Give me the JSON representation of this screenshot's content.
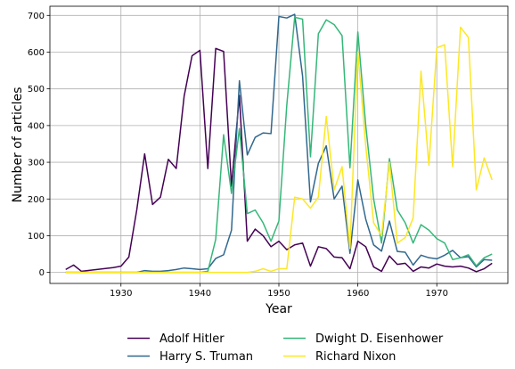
{
  "chart_data": {
    "type": "line",
    "title": "",
    "xlabel": "Year",
    "ylabel": "Number of articles",
    "xlim": [
      1921,
      1979
    ],
    "ylim": [
      -30,
      725
    ],
    "xticks": [
      1930,
      1940,
      1950,
      1960,
      1970
    ],
    "yticks": [
      0,
      100,
      200,
      300,
      400,
      500,
      600,
      700
    ],
    "grid": true,
    "legend_position": "bottom",
    "series": [
      {
        "name": "Adolf Hitler",
        "color": "#440154",
        "x": [
          1923,
          1924,
          1925,
          1929,
          1930,
          1931,
          1932,
          1933,
          1934,
          1935,
          1936,
          1937,
          1938,
          1939,
          1940,
          1941,
          1942,
          1943,
          1944,
          1945,
          1946,
          1947,
          1948,
          1949,
          1950,
          1951,
          1952,
          1953,
          1954,
          1955,
          1956,
          1957,
          1958,
          1959,
          1960,
          1961,
          1962,
          1963,
          1964,
          1965,
          1966,
          1967,
          1968,
          1969,
          1970,
          1971,
          1972,
          1973,
          1974,
          1975,
          1976,
          1977
        ],
        "y": [
          8,
          20,
          3,
          13,
          17,
          42,
          170,
          323,
          185,
          205,
          308,
          283,
          480,
          590,
          605,
          283,
          610,
          602,
          235,
          482,
          85,
          118,
          100,
          70,
          85,
          62,
          75,
          80,
          17,
          70,
          65,
          42,
          40,
          10,
          85,
          70,
          15,
          3,
          45,
          22,
          25,
          3,
          15,
          12,
          23,
          17,
          15,
          17,
          12,
          2,
          10,
          25
        ]
      },
      {
        "name": "Harry S. Truman",
        "color": "#31688e",
        "x": [
          1923,
          1932,
          1933,
          1934,
          1935,
          1936,
          1937,
          1938,
          1939,
          1940,
          1941,
          1942,
          1943,
          1944,
          1945,
          1946,
          1947,
          1948,
          1949,
          1950,
          1951,
          1952,
          1953,
          1954,
          1955,
          1956,
          1957,
          1958,
          1959,
          1960,
          1961,
          1962,
          1963,
          1964,
          1965,
          1966,
          1967,
          1968,
          1969,
          1970,
          1971,
          1972,
          1973,
          1974,
          1975,
          1976,
          1977
        ],
        "y": [
          0,
          0,
          5,
          3,
          3,
          5,
          8,
          12,
          10,
          8,
          10,
          38,
          48,
          115,
          522,
          320,
          368,
          380,
          378,
          697,
          693,
          703,
          535,
          192,
          297,
          345,
          200,
          235,
          52,
          252,
          145,
          75,
          58,
          140,
          57,
          55,
          20,
          47,
          40,
          37,
          47,
          60,
          40,
          43,
          15,
          35,
          33
        ]
      },
      {
        "name": "Dwight D. Eisenhower",
        "color": "#35b779",
        "x": [
          1923,
          1939,
          1940,
          1941,
          1942,
          1943,
          1944,
          1945,
          1946,
          1947,
          1948,
          1949,
          1950,
          1951,
          1952,
          1953,
          1954,
          1955,
          1956,
          1957,
          1958,
          1959,
          1960,
          1961,
          1962,
          1963,
          1964,
          1965,
          1966,
          1967,
          1968,
          1969,
          1970,
          1971,
          1972,
          1973,
          1974,
          1975,
          1976,
          1977
        ],
        "y": [
          0,
          0,
          0,
          3,
          90,
          375,
          215,
          392,
          160,
          170,
          135,
          85,
          140,
          455,
          695,
          690,
          315,
          650,
          688,
          675,
          645,
          285,
          655,
          400,
          200,
          80,
          310,
          170,
          135,
          80,
          130,
          115,
          92,
          80,
          35,
          40,
          48,
          18,
          40,
          50
        ]
      },
      {
        "name": "Richard Nixon",
        "color": "#fde725",
        "x": [
          1923,
          1945,
          1946,
          1947,
          1948,
          1949,
          1950,
          1951,
          1952,
          1953,
          1954,
          1955,
          1956,
          1957,
          1958,
          1959,
          1960,
          1961,
          1962,
          1963,
          1964,
          1965,
          1966,
          1967,
          1968,
          1969,
          1970,
          1971,
          1972,
          1973,
          1974,
          1975,
          1976,
          1977
        ],
        "y": [
          0,
          0,
          0,
          3,
          10,
          3,
          10,
          10,
          205,
          200,
          175,
          205,
          425,
          225,
          288,
          65,
          600,
          345,
          135,
          100,
          300,
          80,
          95,
          148,
          548,
          292,
          612,
          620,
          288,
          668,
          640,
          225,
          312,
          252
        ]
      }
    ]
  }
}
